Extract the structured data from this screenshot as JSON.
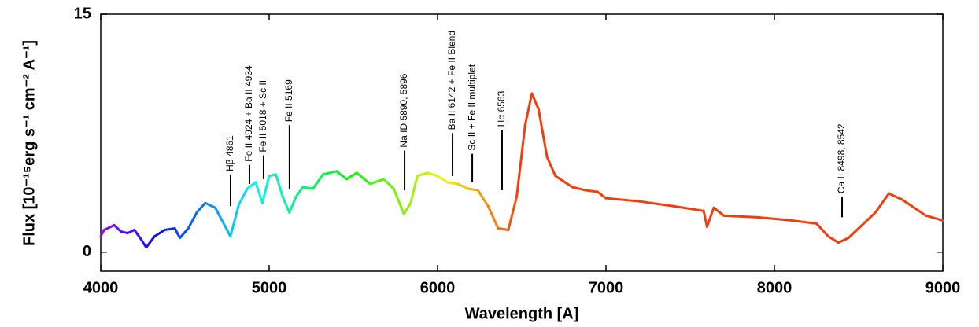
{
  "chart_data": {
    "type": "line",
    "x_label": "Wavelength [A]",
    "y_label": "Flux [10⁻¹⁵erg s⁻¹ cm⁻² A⁻¹]",
    "xlim": [
      4000,
      9000
    ],
    "ylim": [
      -1.2,
      15
    ],
    "xticks": [
      4000,
      5000,
      6000,
      7000,
      8000,
      9000
    ],
    "yticks": [
      0,
      15
    ],
    "x": [
      4000,
      4020,
      4080,
      4120,
      4160,
      4200,
      4240,
      4270,
      4320,
      4380,
      4440,
      4470,
      4520,
      4570,
      4620,
      4680,
      4720,
      4770,
      4820,
      4870,
      4920,
      4960,
      5000,
      5040,
      5080,
      5120,
      5160,
      5200,
      5260,
      5320,
      5400,
      5460,
      5520,
      5600,
      5680,
      5740,
      5800,
      5840,
      5880,
      5940,
      6000,
      6060,
      6120,
      6180,
      6240,
      6300,
      6360,
      6420,
      6470,
      6520,
      6560,
      6600,
      6650,
      6700,
      6800,
      6880,
      6950,
      7000,
      7200,
      7400,
      7580,
      7600,
      7640,
      7700,
      7900,
      8100,
      8250,
      8320,
      8380,
      8440,
      8500,
      8600,
      8680,
      8760,
      8900,
      9000
    ],
    "series": [
      {
        "values": [
          1.0,
          1.4,
          1.7,
          1.3,
          1.2,
          1.4,
          0.8,
          0.3,
          1.0,
          1.4,
          1.5,
          0.9,
          1.5,
          2.5,
          3.1,
          2.8,
          2.0,
          1.0,
          3.0,
          4.0,
          4.4,
          3.1,
          4.8,
          4.9,
          3.5,
          2.5,
          3.5,
          4.1,
          4.0,
          4.9,
          5.1,
          4.6,
          5.0,
          4.3,
          4.6,
          4.0,
          2.4,
          3.1,
          4.8,
          5.0,
          4.8,
          4.4,
          4.3,
          4.0,
          3.9,
          2.9,
          1.5,
          1.4,
          3.5,
          8.0,
          10.0,
          9.0,
          6.0,
          4.8,
          4.1,
          3.9,
          3.8,
          3.4,
          3.2,
          2.9,
          2.6,
          1.6,
          2.8,
          2.3,
          2.2,
          2.0,
          1.8,
          1.0,
          0.6,
          0.9,
          1.5,
          2.5,
          3.7,
          3.3,
          2.3,
          2.0
        ]
      }
    ],
    "annotations": [
      {
        "text": "Hβ 4861",
        "x": 4771,
        "y": [
          2.9,
          4.9
        ]
      },
      {
        "text": "Fe II 4924 + Ba II 4934",
        "x": 4883,
        "y": [
          4.3,
          5.5
        ]
      },
      {
        "text": "Fe II 5018 + Sc II",
        "x": 4967,
        "y": [
          4.6,
          6.1
        ]
      },
      {
        "text": "Fe II 5169",
        "x": 5121,
        "y": [
          4.0,
          8.0
        ]
      },
      {
        "text": "Na ID 5890, 5896",
        "x": 5804,
        "y": [
          3.9,
          6.4
        ]
      },
      {
        "text": "Ba II 6142 + Fe II Blend",
        "x": 6089,
        "y": [
          4.8,
          7.5
        ]
      },
      {
        "text": "Sc II + Fe II multiplet",
        "x": 6206,
        "y": [
          4.4,
          6.2
        ]
      },
      {
        "text": "Hα 6563",
        "x": 6383,
        "y": [
          3.9,
          7.7
        ]
      },
      {
        "text": "Ca II 8498, 8542",
        "x": 8402,
        "y": [
          2.2,
          3.5
        ]
      }
    ]
  }
}
